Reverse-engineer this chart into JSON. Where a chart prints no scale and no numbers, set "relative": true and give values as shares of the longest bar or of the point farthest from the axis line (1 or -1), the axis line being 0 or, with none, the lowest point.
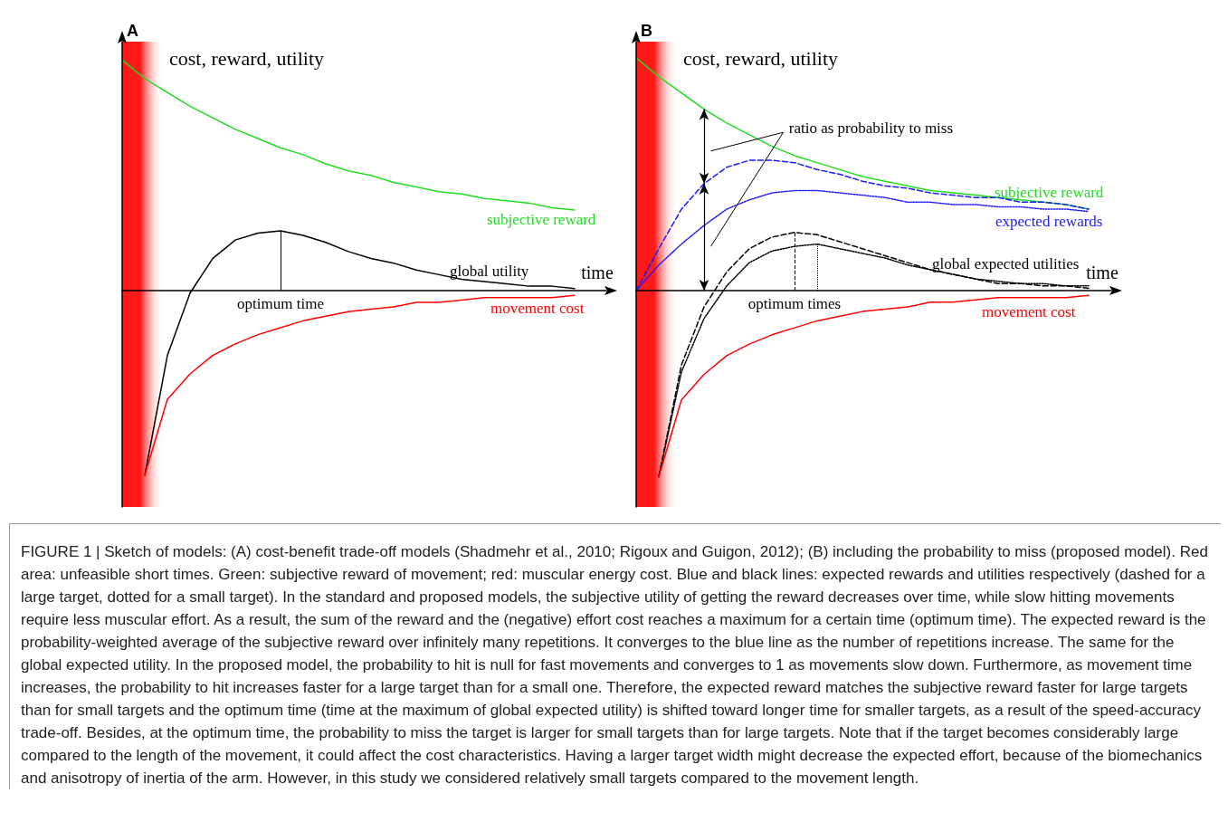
{
  "chart_data": [
    {
      "type": "line",
      "title": "A",
      "xlabel": "time",
      "ylabel": "cost, reward, utility",
      "relative": true,
      "tick_labels": false,
      "marker": "none",
      "categories": [
        null,
        null,
        null,
        null,
        null,
        null,
        null,
        null,
        null,
        null,
        null,
        null,
        null,
        null,
        null,
        null,
        null,
        null,
        null,
        null,
        null,
        null
      ],
      "series": [
        {
          "name": "subjective reward",
          "color": "#22dd22",
          "values": [
            1.0,
            0.92,
            0.86,
            0.8,
            0.75,
            0.7,
            0.66,
            0.62,
            0.59,
            0.55,
            0.52,
            0.5,
            0.47,
            0.45,
            0.43,
            0.42,
            0.4,
            0.39,
            0.38,
            0.36,
            0.35,
            null
          ]
        },
        {
          "name": "global utility",
          "color": "#000000",
          "values": [
            null,
            -0.8,
            -0.28,
            -0.01,
            0.14,
            0.22,
            0.25,
            0.26,
            0.24,
            0.21,
            0.17,
            0.14,
            0.12,
            0.09,
            0.07,
            0.05,
            0.04,
            0.03,
            0.02,
            0.02,
            0.01,
            null
          ]
        },
        {
          "name": "movement cost",
          "color": "#ff0000",
          "values": [
            null,
            -0.8,
            -0.47,
            -0.36,
            -0.28,
            -0.23,
            -0.19,
            -0.16,
            -0.13,
            -0.11,
            -0.09,
            -0.08,
            -0.07,
            -0.05,
            -0.05,
            -0.04,
            -0.03,
            -0.03,
            -0.03,
            -0.03,
            -0.02,
            null
          ]
        }
      ],
      "annotations": [
        "optimum time",
        "FIGURE 1 | Sketch of models: (A) cost-benefit trade-off models (Shadmehr et al., 2010; Rigoux and Guigon, 2012); (B) including the probability to miss (proposed model). Red area: unfeasible short times. Green: subjective reward of movement; red: muscular energy cost. Blue and black lines: expected rewards and utilities respectively (dashed for a large target, dotted for a small target). In the standard and proposed models, the subjective utility of getting the reward decreases over time, while slow hitting movements require less muscular effort. As a result, the sum of the reward and the (negative) effort cost reaches a maximum for a certain time (optimum time). The expected reward is the probability-weighted average of the subjective reward over infinitely many repetitions. It converges to the blue line as the number of repetitions increase. The same for the global expected utility. In the proposed model, the probability to hit is null for fast movements and converges to 1 as movements slow down. Furthermore, as movement time increases, the probability to hit increases faster for a large target than for a small one. Therefore, the expected reward matches the subjective reward faster for large targets than for small targets and the optimum time (time at the maximum of global expected utility) is shifted toward longer time for smaller targets, as a result of the speed-accuracy trade-off. Besides, at the optimum time, the probability to miss the target is larger for small targets than for large targets. Note that if the target becomes considerably large compared to the length of the movement, it could affect the cost characteristics. Having a larger target width might decrease the expected effort, because of the biomechanics and anisotropy of inertia of the arm. However, in this study we considered relatively small targets compared to the movement length."
      ]
    },
    {
      "type": "line",
      "title": "B",
      "xlabel": "time",
      "ylabel": "cost, reward, utility",
      "relative": true,
      "tick_labels": false,
      "marker": "none",
      "categories": [
        null,
        null,
        null,
        null,
        null,
        null,
        null,
        null,
        null,
        null,
        null,
        null,
        null,
        null,
        null,
        null,
        null,
        null,
        null,
        null,
        null,
        null
      ],
      "series": [
        {
          "name": "subjective reward",
          "color": "#22dd22",
          "values": [
            1.0,
            0.92,
            0.85,
            0.78,
            0.72,
            0.67,
            0.62,
            0.58,
            0.55,
            0.52,
            0.49,
            0.47,
            0.45,
            0.43,
            0.42,
            0.41,
            0.4,
            0.39,
            0.38,
            0.37,
            0.35,
            null
          ]
        },
        {
          "name": "expected rewards",
          "color": "#1a1aff",
          "line_style": "dashed",
          "values": [
            0,
            0.18,
            0.35,
            0.46,
            0.53,
            0.56,
            0.56,
            0.55,
            0.52,
            0.5,
            0.47,
            0.45,
            0.44,
            0.42,
            0.41,
            0.4,
            0.4,
            0.38,
            0.38,
            0.37,
            0.35,
            null
          ]
        },
        {
          "color": "#1a1aff",
          "line_style": "dotted",
          "values": [
            0,
            0.11,
            0.2,
            0.28,
            0.35,
            0.39,
            0.42,
            0.43,
            0.43,
            0.42,
            0.41,
            0.4,
            0.38,
            0.38,
            0.37,
            0.37,
            0.36,
            0.36,
            0.35,
            0.35,
            0.34,
            null
          ]
        },
        {
          "name": "global expected utilities",
          "color": "#000000",
          "line_style": "dashed",
          "values": [
            null,
            -0.8,
            -0.32,
            -0.07,
            0.08,
            0.18,
            0.23,
            0.25,
            0.24,
            0.21,
            0.18,
            0.15,
            0.12,
            0.09,
            0.07,
            0.05,
            0.03,
            0.03,
            0.02,
            0.02,
            0.01,
            null
          ]
        },
        {
          "color": "#000000",
          "line_style": "dotted",
          "values": [
            null,
            -0.8,
            -0.35,
            -0.12,
            0.02,
            0.12,
            0.17,
            0.19,
            0.2,
            0.18,
            0.16,
            0.14,
            0.11,
            0.09,
            0.07,
            0.05,
            0.04,
            0.03,
            0.03,
            0.02,
            0.02,
            null
          ]
        },
        {
          "name": "movement cost",
          "color": "#ff0000",
          "values": [
            null,
            -0.8,
            -0.47,
            -0.36,
            -0.28,
            -0.23,
            -0.19,
            -0.16,
            -0.13,
            -0.11,
            -0.09,
            -0.08,
            -0.07,
            -0.05,
            -0.05,
            -0.04,
            -0.03,
            -0.03,
            -0.03,
            -0.03,
            -0.02,
            null
          ]
        }
      ],
      "annotations": [
        "optimum times",
        "ratio as probability to miss"
      ]
    }
  ]
}
